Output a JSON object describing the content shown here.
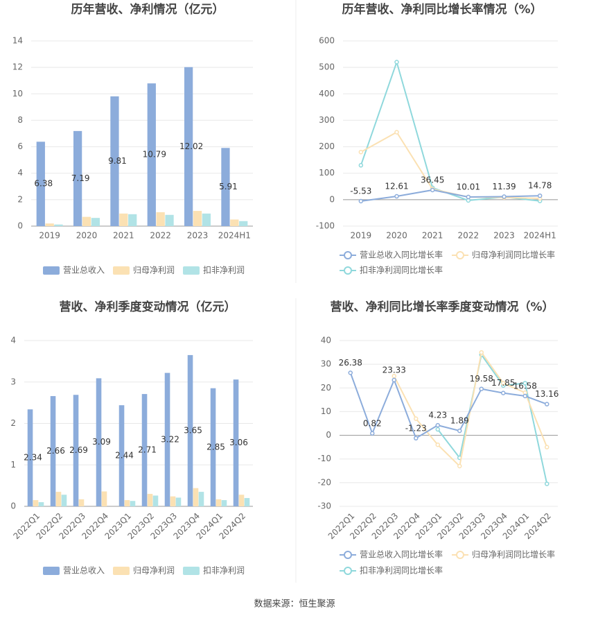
{
  "chart_data": [
    {
      "type": "bar",
      "title": "历年营收、净利情况（亿元）",
      "categories": [
        "2019",
        "2020",
        "2021",
        "2022",
        "2023",
        "2024H1"
      ],
      "series": [
        {
          "name": "营业总收入",
          "color": "#8cacdb",
          "data_labels": true,
          "values": [
            6.38,
            7.19,
            9.81,
            10.79,
            12.02,
            5.91
          ]
        },
        {
          "name": "归母净利润",
          "color": "#fbe1b3",
          "values": [
            0.2,
            0.7,
            0.95,
            1.05,
            1.15,
            0.5
          ]
        },
        {
          "name": "扣非净利润",
          "color": "#b1e3e6",
          "values": [
            0.12,
            0.62,
            0.9,
            0.85,
            0.95,
            0.38
          ]
        }
      ],
      "ylim": [
        0,
        14
      ],
      "yticks": [
        0,
        2,
        4,
        6,
        8,
        10,
        12,
        14
      ],
      "grid": true
    },
    {
      "type": "line",
      "title": "历年营收、净利同比增长率情况（%）",
      "categories": [
        "2019",
        "2020",
        "2021",
        "2022",
        "2023",
        "2024H1"
      ],
      "series": [
        {
          "name": "营业总收入同比增长率",
          "color": "#8cacdb",
          "data_labels": true,
          "values": [
            -5.53,
            12.61,
            36.45,
            10.01,
            11.39,
            14.78
          ]
        },
        {
          "name": "归母净利润同比增长率",
          "color": "#fbe1b3",
          "values": [
            180,
            255,
            40,
            10,
            8,
            5
          ]
        },
        {
          "name": "扣非净利润同比增长率",
          "color": "#8fd8dc",
          "values": [
            130,
            520,
            45,
            -3,
            10,
            -5
          ]
        }
      ],
      "ylim": [
        -100,
        600
      ],
      "yticks": [
        -100,
        0,
        100,
        200,
        300,
        400,
        500,
        600
      ],
      "grid": true
    },
    {
      "type": "bar",
      "title": "营收、净利季度变动情况（亿元）",
      "categories": [
        "2022Q1",
        "2022Q2",
        "2022Q3",
        "2022Q4",
        "2023Q1",
        "2023Q2",
        "2023Q3",
        "2023Q4",
        "2024Q1",
        "2024Q2"
      ],
      "series": [
        {
          "name": "营业总收入",
          "color": "#8cacdb",
          "data_labels": true,
          "values": [
            2.34,
            2.66,
            2.69,
            3.09,
            2.44,
            2.71,
            3.22,
            3.65,
            2.85,
            3.06
          ]
        },
        {
          "name": "归母净利润",
          "color": "#fbe1b3",
          "values": [
            0.15,
            0.35,
            0.17,
            0.36,
            0.15,
            0.3,
            0.24,
            0.44,
            0.17,
            0.28
          ]
        },
        {
          "name": "扣非净利润",
          "color": "#b1e3e6",
          "values": [
            0.1,
            0.28,
            null,
            null,
            0.13,
            0.26,
            0.21,
            0.35,
            0.15,
            0.2
          ]
        }
      ],
      "ylim": [
        0,
        4
      ],
      "yticks": [
        0,
        1,
        2,
        3,
        4
      ],
      "grid": true,
      "rotate_labels": true
    },
    {
      "type": "line",
      "title": "营收、净利同比增长率季度变动情况（%）",
      "categories": [
        "2022Q1",
        "2022Q2",
        "2022Q3",
        "2022Q4",
        "2023Q1",
        "2023Q2",
        "2023Q3",
        "2023Q4",
        "2024Q1",
        "2024Q2"
      ],
      "series": [
        {
          "name": "营业总收入同比增长率",
          "color": "#8cacdb",
          "data_labels": true,
          "values": [
            26.38,
            0.82,
            23.33,
            -1.23,
            4.23,
            1.89,
            19.58,
            17.85,
            16.58,
            13.16
          ]
        },
        {
          "name": "归母净利润同比增长率",
          "color": "#fbe1b3",
          "values": [
            null,
            null,
            25,
            7,
            -4,
            -13,
            35,
            22,
            18,
            -5
          ]
        },
        {
          "name": "扣非净利润同比增长率",
          "color": "#8fd8dc",
          "values": [
            null,
            null,
            null,
            null,
            2.5,
            -9.5,
            34,
            21,
            22,
            -20.5
          ]
        }
      ],
      "ylim": [
        -30,
        40
      ],
      "yticks": [
        -30,
        -20,
        -10,
        0,
        10,
        20,
        30,
        40
      ],
      "grid": true,
      "rotate_labels": true
    }
  ],
  "source": "数据来源：恒生聚源"
}
